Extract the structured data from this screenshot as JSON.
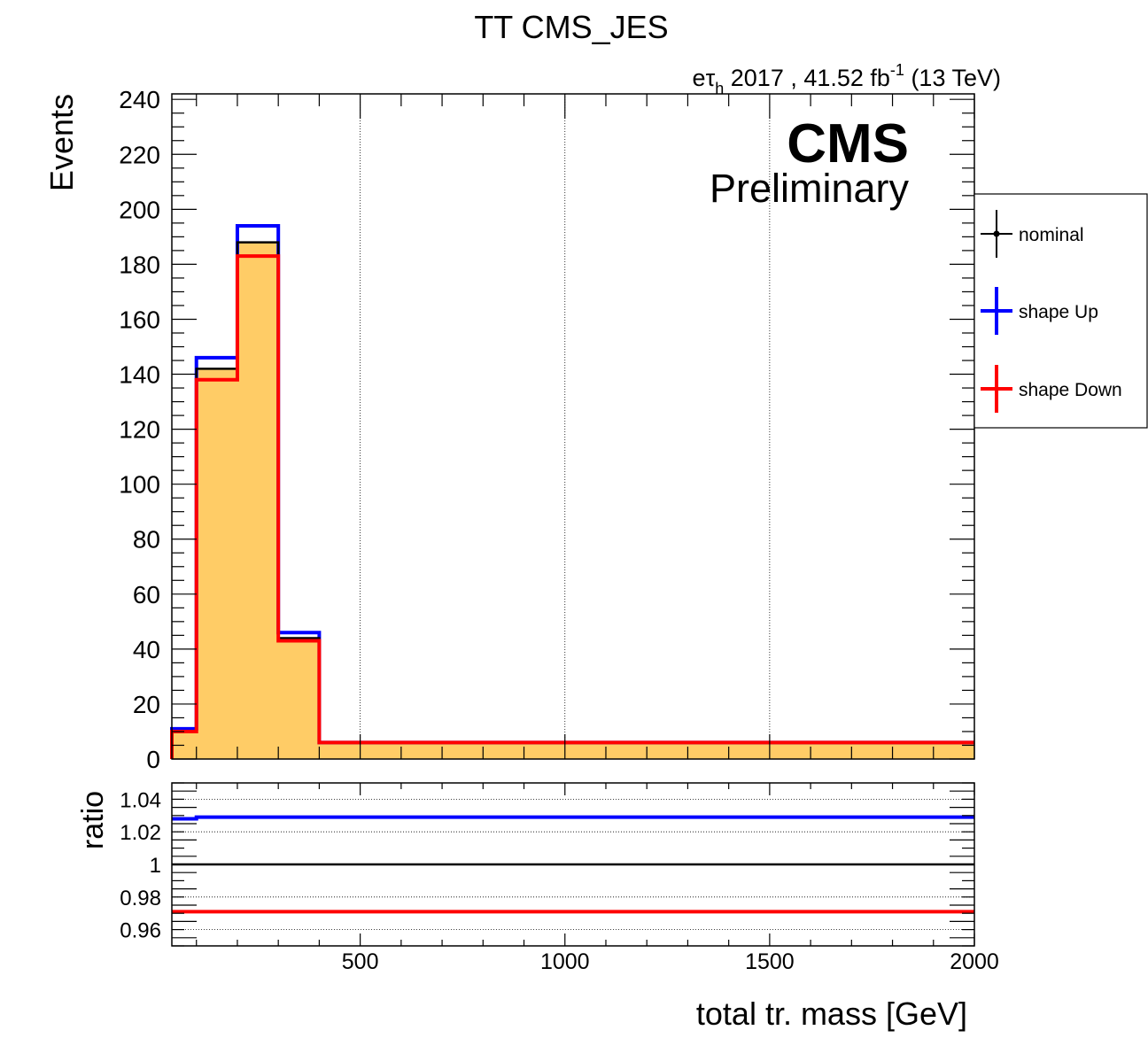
{
  "title": "TT CMS_JES",
  "lumi": {
    "channel_prefix": "e",
    "channel_tau": "τ",
    "channel_sub": "h",
    "year_lumi": " 2017 , 41.52 fb",
    "lumi_exp": "-1",
    "energy": " (13 TeV)"
  },
  "cms_label": "CMS",
  "prelim_label": "Preliminary",
  "colors": {
    "fill": "#ffcc66",
    "nominal": "#000000",
    "up": "#0000ff",
    "down": "#ff0000",
    "grid": "#000000"
  },
  "chart_data": [
    {
      "type": "histogram",
      "ylabel": "Events",
      "xlim": [
        40,
        2000
      ],
      "ylim": [
        0,
        242
      ],
      "yticks": [
        0,
        20,
        40,
        60,
        80,
        100,
        120,
        140,
        160,
        180,
        200,
        220,
        240
      ],
      "ytick_labels": [
        "0",
        "20",
        "40",
        "60",
        "80",
        "100",
        "120",
        "140",
        "160",
        "180",
        "200",
        "220",
        "240"
      ],
      "xgrid": [
        500,
        1000,
        1500
      ],
      "bin_edges": [
        40,
        100,
        200,
        300,
        400,
        2000
      ],
      "series": [
        {
          "name": "nominal",
          "values": [
            10,
            142,
            188,
            44,
            6
          ]
        },
        {
          "name": "shape Up",
          "values": [
            11,
            146,
            194,
            46,
            6
          ]
        },
        {
          "name": "shape Down",
          "values": [
            10,
            138,
            183,
            43,
            6
          ]
        }
      ],
      "legend": {
        "position": "right",
        "entries": [
          "nominal",
          "shape Up",
          "shape Down"
        ]
      }
    },
    {
      "type": "line",
      "ylabel": "ratio",
      "xlabel": "total tr. mass [GeV]",
      "xlim": [
        40,
        2000
      ],
      "ylim": [
        0.95,
        1.05
      ],
      "yticks": [
        0.96,
        0.98,
        1,
        1.02,
        1.04
      ],
      "ytick_labels": [
        "0.96",
        "0.98",
        "1",
        "1.02",
        "1.04"
      ],
      "xticks": [
        500,
        1000,
        1500,
        2000
      ],
      "xtick_labels": [
        "500",
        "1000",
        "1500",
        "2000"
      ],
      "series": [
        {
          "name": "shape Up",
          "values": [
            1.028,
            1.029,
            1.029,
            1.029,
            1.029
          ]
        },
        {
          "name": "nominal",
          "values": [
            1,
            1,
            1,
            1,
            1
          ]
        },
        {
          "name": "shape Down",
          "values": [
            0.971,
            0.971,
            0.971,
            0.971,
            0.971
          ]
        }
      ]
    }
  ]
}
